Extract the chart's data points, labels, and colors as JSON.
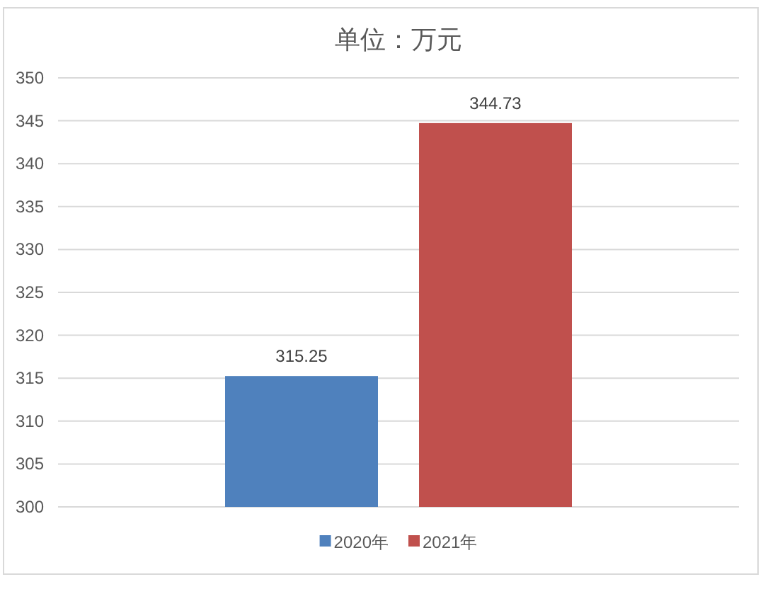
{
  "chart_data": {
    "type": "bar",
    "title": "单位：万元",
    "categories": [
      null
    ],
    "series": [
      {
        "name": "2020年",
        "color": "#4f81bd",
        "values": [
          315.25
        ]
      },
      {
        "name": "2021年",
        "color": "#c0504d",
        "values": [
          344.73
        ]
      }
    ],
    "ylim": [
      300,
      350
    ],
    "yticks": [
      300,
      305,
      310,
      315,
      320,
      325,
      330,
      335,
      340,
      345,
      350
    ],
    "grid": "y",
    "legend": "bottom",
    "data_labels": true
  }
}
